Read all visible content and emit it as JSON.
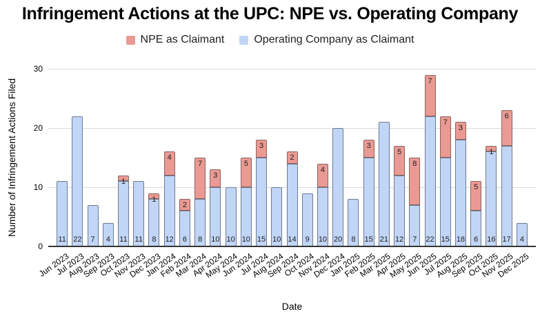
{
  "chart_data": {
    "type": "bar",
    "stacked": true,
    "title": "Infringement Actions at the UPC: NPE vs. Operating Company",
    "xlabel": "Date",
    "ylabel": "Number of Infringement Actions Filed",
    "ylim": [
      0,
      30
    ],
    "yticks": [
      0,
      10,
      20,
      30
    ],
    "grid": true,
    "legend_position": "top",
    "value_labels": true,
    "categories": [
      "Jun 2023",
      "Jul 2023",
      "Aug 2023",
      "Sep 2023",
      "Oct 2023",
      "Nov 2023",
      "Dec 2023",
      "Jan 2024",
      "Feb 2024",
      "Mar 2024",
      "Apr 2024",
      "May 2024",
      "Jun 2024",
      "Jul 2024",
      "Aug 2024",
      "Sep 2024",
      "Oct 2024",
      "Nov 2024",
      "Dec 2024",
      "Jan 2025",
      "Feb 2025",
      "Mar 2025",
      "Apr 2025",
      "May 2025",
      "Jun 2025",
      "Jul 2025",
      "Aug 2025",
      "Sep 2025",
      "Oct 2025",
      "Nov 2025",
      "Dec 2025"
    ],
    "series": [
      {
        "name": "NPE as Claimant",
        "color": "#ea9a93",
        "stack_position": "top",
        "values": [
          0,
          0,
          0,
          0,
          1,
          0,
          1,
          4,
          2,
          7,
          3,
          0,
          5,
          3,
          0,
          2,
          0,
          4,
          0,
          0,
          3,
          0,
          5,
          8,
          7,
          7,
          3,
          5,
          1,
          6,
          0
        ]
      },
      {
        "name": "Operating Company as Claimant",
        "color": "#c1d5f6",
        "stack_position": "bottom",
        "values": [
          11,
          22,
          7,
          4,
          11,
          11,
          8,
          12,
          6,
          8,
          10,
          10,
          10,
          15,
          10,
          14,
          9,
          10,
          20,
          8,
          15,
          21,
          12,
          7,
          22,
          15,
          18,
          6,
          16,
          17,
          4
        ]
      }
    ]
  }
}
